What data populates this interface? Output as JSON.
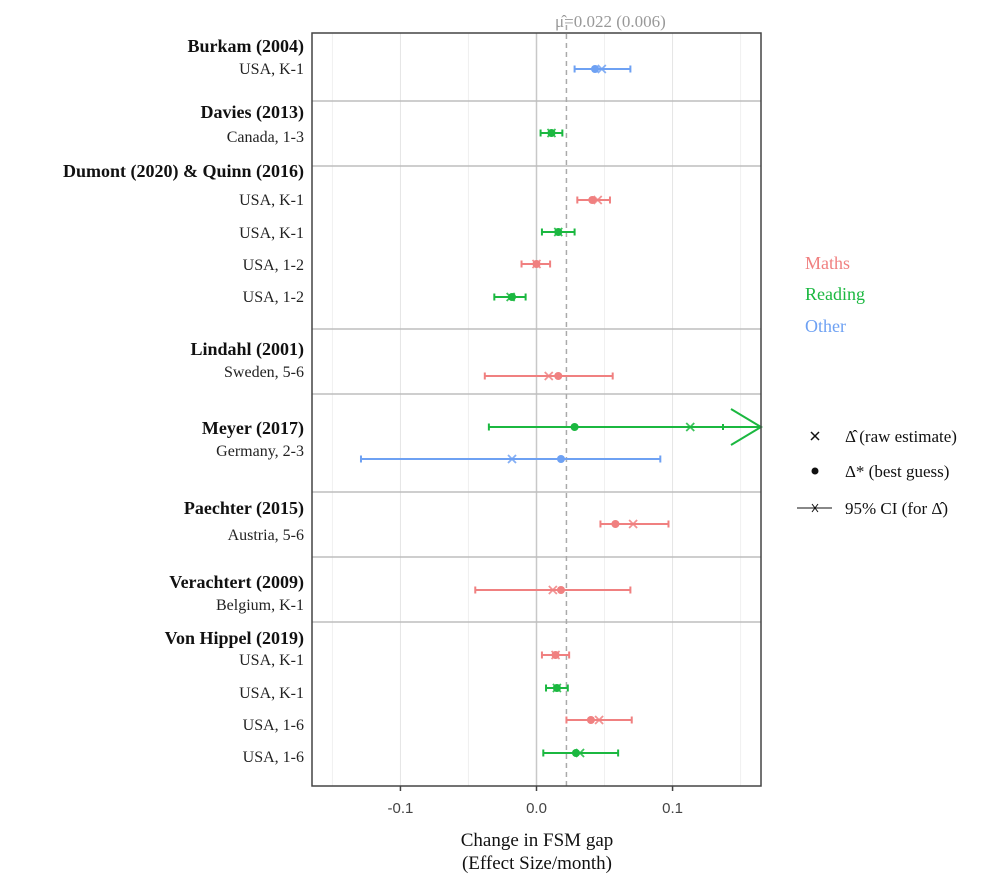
{
  "chart_data": {
    "type": "forest",
    "pooled_label": "μ̂=0.022 (0.006)",
    "pooled_value": 0.022,
    "xlabel_line1": "Change in FSM gap",
    "xlabel_line2": "(Effect Size/month)",
    "xlim": [
      -0.165,
      0.165
    ],
    "x_ticks": [
      -0.1,
      0.0,
      0.1
    ],
    "x_tick_labels": [
      "-0.1",
      "0.0",
      "0.1"
    ],
    "grid": true,
    "colors": {
      "Maths": "#f08080",
      "Reading": "#1bb840",
      "Other": "#6ea1f3"
    },
    "legend_subjects": [
      "Maths",
      "Reading",
      "Other"
    ],
    "legend_symbols": [
      {
        "glyph": "x",
        "text": "Δ̂ (raw estimate)"
      },
      {
        "glyph": "●",
        "text": "Δ* (best guess)"
      },
      {
        "glyph": "ci",
        "text": "95% CI (for Δ̂)"
      }
    ],
    "studies": [
      {
        "name": "Burkam (2004)",
        "rows": [
          {
            "label": "USA, K-1",
            "subject": "Other",
            "raw": 0.048,
            "best": 0.043,
            "lo": 0.028,
            "hi": 0.069
          }
        ]
      },
      {
        "name": "Davies (2013)",
        "rows": [
          {
            "label": "Canada, 1-3",
            "subject": "Reading",
            "raw": 0.011,
            "best": 0.011,
            "lo": 0.003,
            "hi": 0.019
          }
        ]
      },
      {
        "name": "Dumont (2020) & Quinn (2016)",
        "rows": [
          {
            "label": "USA, K-1",
            "subject": "Maths",
            "raw": 0.045,
            "best": 0.041,
            "lo": 0.03,
            "hi": 0.054
          },
          {
            "label": "USA, K-1",
            "subject": "Reading",
            "raw": 0.016,
            "best": 0.016,
            "lo": 0.004,
            "hi": 0.028
          },
          {
            "label": "USA, 1-2",
            "subject": "Maths",
            "raw": 0.0,
            "best": 0.0,
            "lo": -0.011,
            "hi": 0.01
          },
          {
            "label": "USA, 1-2",
            "subject": "Reading",
            "raw": -0.019,
            "best": -0.018,
            "lo": -0.031,
            "hi": -0.008
          }
        ]
      },
      {
        "name": "Lindahl (2001)",
        "rows": [
          {
            "label": "Sweden, 5-6",
            "subject": "Maths",
            "raw": 0.009,
            "best": 0.016,
            "lo": -0.038,
            "hi": 0.056
          }
        ]
      },
      {
        "name": "Meyer (2017)",
        "rows": [
          {
            "label": "Germany, 2-3",
            "subject": "Reading",
            "raw": 0.113,
            "best": 0.028,
            "lo": -0.035,
            "hi": 0.165,
            "arrow": true
          },
          {
            "label": "",
            "subject": "Other",
            "raw": -0.018,
            "best": 0.018,
            "lo": -0.129,
            "hi": 0.091
          }
        ]
      },
      {
        "name": "Paechter (2015)",
        "rows": [
          {
            "label": "Austria, 5-6",
            "subject": "Maths",
            "raw": 0.071,
            "best": 0.058,
            "lo": 0.047,
            "hi": 0.097
          }
        ]
      },
      {
        "name": "Verachtert (2009)",
        "rows": [
          {
            "label": "Belgium, K-1",
            "subject": "Maths",
            "raw": 0.012,
            "best": 0.018,
            "lo": -0.045,
            "hi": 0.069
          }
        ]
      },
      {
        "name": "Von Hippel (2019)",
        "rows": [
          {
            "label": "USA, K-1",
            "subject": "Maths",
            "raw": 0.014,
            "best": 0.014,
            "lo": 0.004,
            "hi": 0.024
          },
          {
            "label": "USA, K-1",
            "subject": "Reading",
            "raw": 0.015,
            "best": 0.015,
            "lo": 0.007,
            "hi": 0.023
          },
          {
            "label": "USA, 1-6",
            "subject": "Maths",
            "raw": 0.046,
            "best": 0.04,
            "lo": 0.022,
            "hi": 0.07
          },
          {
            "label": "USA, 1-6",
            "subject": "Reading",
            "raw": 0.032,
            "best": 0.029,
            "lo": 0.005,
            "hi": 0.06
          }
        ]
      }
    ]
  }
}
